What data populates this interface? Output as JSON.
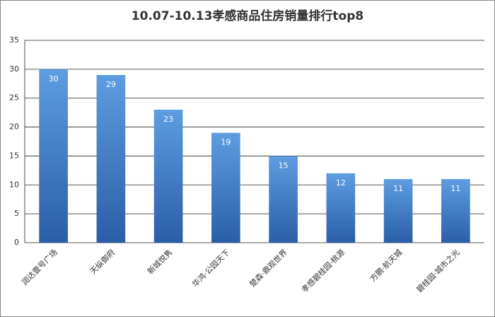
{
  "chart_data": {
    "type": "bar",
    "title": "10.07-10.13孝感商品住房销量排行top8",
    "categories": [
      "润达壹号广场",
      "天纵御府",
      "新城悦隽",
      "华鸿·公园天下",
      "楚森·鼎观世界",
      "孝感碧桂园·桃源",
      "方鹏·航天城",
      "碧桂园·城市之光"
    ],
    "values": [
      30,
      29,
      23,
      19,
      15,
      12,
      11,
      11
    ],
    "color": "#3a78c6",
    "ylim": [
      0,
      35
    ],
    "yticks": [
      0,
      5,
      10,
      15,
      20,
      25,
      30,
      35
    ],
    "grid": true
  }
}
